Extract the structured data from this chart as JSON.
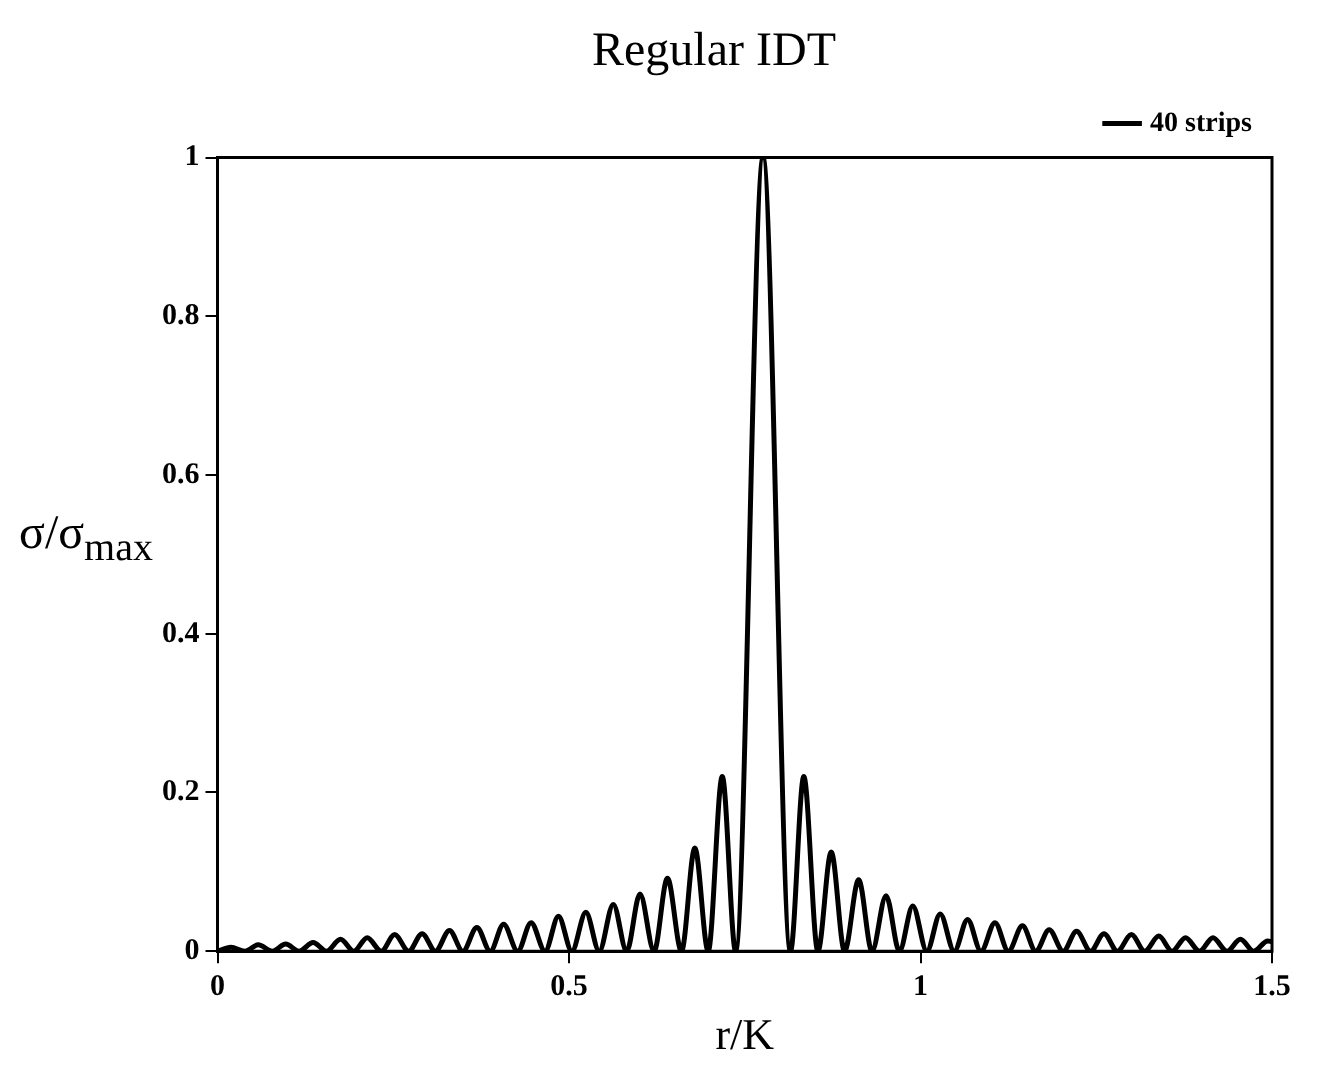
{
  "chart_data": {
    "type": "line",
    "title": "Regular IDT",
    "xlabel": "r/K",
    "ylabel": "σ/σ$_{max}$",
    "x": [
      0,
      0.019,
      0.039,
      0.058,
      0.078,
      0.097,
      0.116,
      0.136,
      0.155,
      0.175,
      0.194,
      0.213,
      0.233,
      0.252,
      0.272,
      0.291,
      0.31,
      0.33,
      0.349,
      0.369,
      0.388,
      0.407,
      0.427,
      0.446,
      0.466,
      0.485,
      0.504,
      0.524,
      0.543,
      0.563,
      0.582,
      0.601,
      0.621,
      0.64,
      0.66,
      0.679,
      0.698,
      0.718,
      0.737,
      0.776,
      0.815,
      0.834,
      0.854,
      0.873,
      0.892,
      0.912,
      0.931,
      0.951,
      0.97,
      0.989,
      1.009,
      1.028,
      1.048,
      1.067,
      1.086,
      1.106,
      1.125,
      1.145,
      1.164,
      1.183,
      1.203,
      1.222,
      1.242,
      1.261,
      1.28,
      1.3,
      1.319,
      1.339,
      1.358,
      1.377,
      1.397,
      1.416,
      1.436,
      1.455,
      1.474,
      1.494,
      1.5
    ],
    "series": [
      {
        "name": "40 strips",
        "color": "#000000",
        "values": [
          0,
          0.005,
          0,
          0.008,
          0,
          0.009,
          0,
          0.011,
          0,
          0.015,
          0,
          0.017,
          0,
          0.021,
          0,
          0.022,
          0,
          0.026,
          0,
          0.03,
          0,
          0.034,
          0,
          0.036,
          0,
          0.044,
          0,
          0.049,
          0,
          0.059,
          0,
          0.072,
          0,
          0.092,
          0,
          0.13,
          0,
          0.22,
          0,
          1,
          0,
          0.22,
          0,
          0.125,
          0,
          0.09,
          0,
          0.07,
          0,
          0.057,
          0,
          0.047,
          0,
          0.04,
          0,
          0.036,
          0,
          0.032,
          0,
          0.027,
          0,
          0.025,
          0,
          0.022,
          0,
          0.021,
          0,
          0.019,
          0,
          0.017,
          0,
          0.017,
          0,
          0.015,
          0,
          0.013,
          0.012
        ]
      }
    ],
    "xlim": [
      0,
      1.5
    ],
    "xticks": [
      0,
      0.5,
      1,
      1.5
    ],
    "ylim": [
      0,
      1
    ],
    "yticks": [
      0,
      0.2,
      0.4,
      0.6,
      0.8,
      1
    ],
    "legend": "top right",
    "marker": "none",
    "line_style": "solid"
  }
}
